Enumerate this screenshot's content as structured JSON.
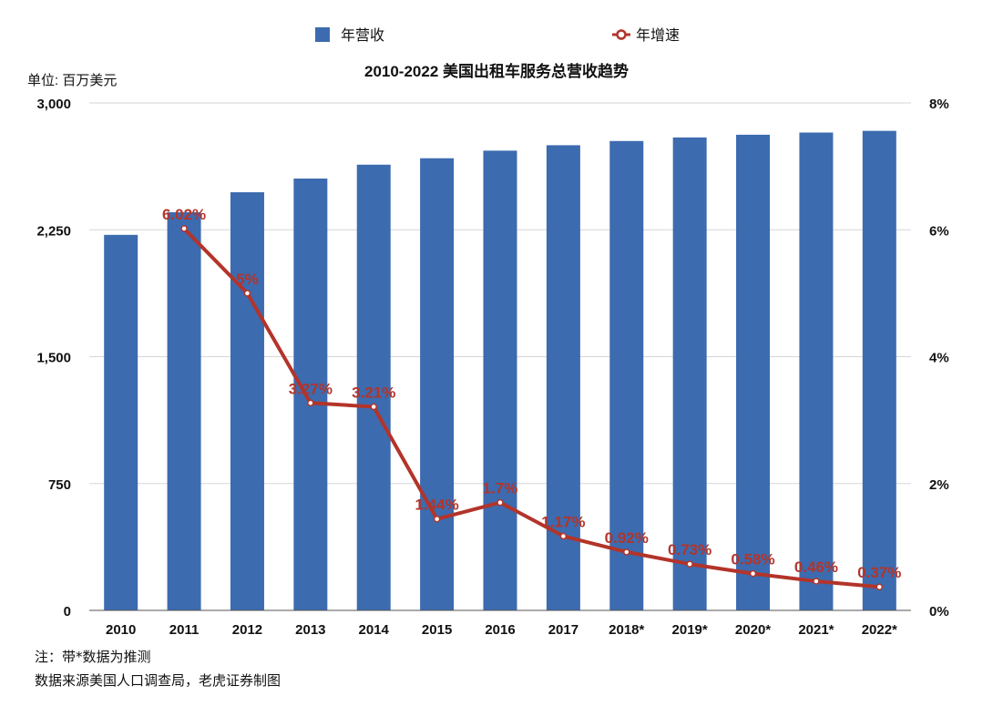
{
  "chart_data": {
    "type": "bar+line",
    "title": "2010-2022 美国出租车服务总营收趋势",
    "y_unit_label": "单位: 百万美元",
    "categories": [
      "2010",
      "2011",
      "2012",
      "2013",
      "2014",
      "2015",
      "2016",
      "2017",
      "2018*",
      "2019*",
      "2020*",
      "2021*",
      "2022*"
    ],
    "series": [
      {
        "name": "年营收",
        "type": "bar",
        "axis": "left",
        "color": "#3c6bb0",
        "values": [
          2220,
          2354,
          2472,
          2553,
          2635,
          2673,
          2718,
          2750,
          2775,
          2796,
          2812,
          2825,
          2835
        ]
      },
      {
        "name": "年增速",
        "type": "line",
        "axis": "right",
        "color": "#b3342a",
        "values": [
          null,
          6.02,
          5,
          3.27,
          3.21,
          1.44,
          1.7,
          1.17,
          0.92,
          0.73,
          0.58,
          0.46,
          0.37
        ],
        "labels": [
          "",
          "6.02%",
          "5%",
          "3.27%",
          "3.21%",
          "1.44%",
          "1.7%",
          "1.17%",
          "0.92%",
          "0.73%",
          "0.58%",
          "0.46%",
          "0.37%"
        ]
      }
    ],
    "y_left": {
      "min": 0,
      "max": 3000,
      "ticks": [
        0,
        750,
        1500,
        2250,
        3000
      ],
      "tick_labels": [
        "0",
        "750",
        "1,500",
        "2,250",
        "3,000"
      ]
    },
    "y_right": {
      "min": 0,
      "max": 8,
      "ticks": [
        0,
        2,
        4,
        6,
        8
      ],
      "tick_labels": [
        "0%",
        "2%",
        "4%",
        "6%",
        "8%"
      ]
    },
    "grid": true,
    "legend_position": "top"
  },
  "notes": {
    "line1": "注：带*数据为推测",
    "line2": "数据来源美国人口调查局，老虎证券制图"
  }
}
